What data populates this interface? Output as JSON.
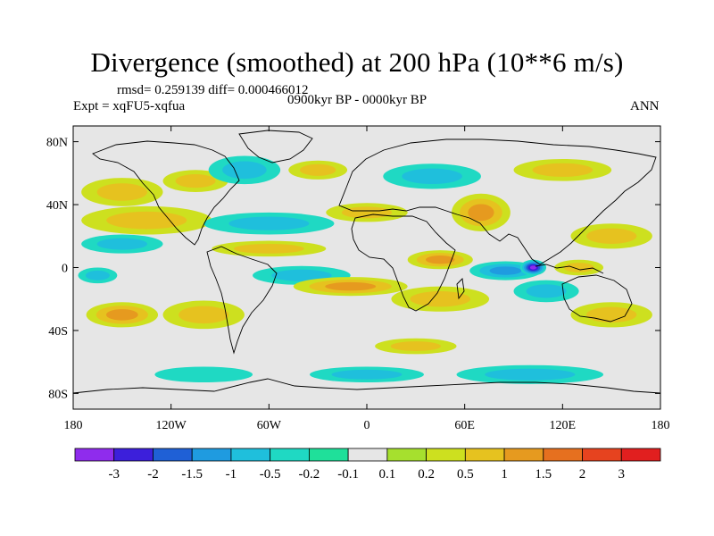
{
  "title": "Divergence (smoothed) at 200 hPa (10**6 m/s)",
  "stats": "rmsd= 0.259139 diff= 0.000466012",
  "experiment": "Expt = xqFU5-xqfua",
  "period": "0900kyr BP - 0000kyr BP",
  "season": "ANN",
  "axes": {
    "y_ticks": [
      {
        "label": "80N",
        "lat": 80
      },
      {
        "label": "40N",
        "lat": 40
      },
      {
        "label": "0",
        "lat": 0
      },
      {
        "label": "40S",
        "lat": -40
      },
      {
        "label": "80S",
        "lat": -80
      }
    ],
    "x_ticks": [
      {
        "label": "180",
        "lon": -180
      },
      {
        "label": "120W",
        "lon": -120
      },
      {
        "label": "60W",
        "lon": -60
      },
      {
        "label": "0",
        "lon": 0
      },
      {
        "label": "60E",
        "lon": 60
      },
      {
        "label": "120E",
        "lon": 120
      },
      {
        "label": "180",
        "lon": 180
      }
    ],
    "lon_range": [
      -180,
      180
    ],
    "lat_range": [
      -90,
      90
    ]
  },
  "colorbar": {
    "colors": [
      "#8f2ced",
      "#3c1fdb",
      "#1f60d6",
      "#1f9be0",
      "#1fbfdc",
      "#1fd9c3",
      "#1fe09a",
      "#e6e6e6",
      "#a6e02e",
      "#cde01f",
      "#e6c21f",
      "#e69a1f",
      "#e6701f",
      "#e6431f",
      "#e11f1f"
    ],
    "labels": [
      "-3",
      "-2",
      "-1.5",
      "-1",
      "-0.5",
      "-0.2",
      "-0.1",
      "0.1",
      "0.2",
      "0.5",
      "1",
      "1.5",
      "2",
      "3"
    ]
  },
  "field_blobs": [
    {
      "lon": -105,
      "lat": 55,
      "rlon": 20,
      "rlat": 7,
      "level": 0.5
    },
    {
      "lon": -75,
      "lat": 62,
      "rlon": 22,
      "rlat": 9,
      "level": -0.5
    },
    {
      "lon": -30,
      "lat": 62,
      "rlon": 18,
      "rlat": 6,
      "level": 0.5
    },
    {
      "lon": 40,
      "lat": 58,
      "rlon": 30,
      "rlat": 8,
      "level": -0.5
    },
    {
      "lon": 120,
      "lat": 62,
      "rlon": 30,
      "rlat": 7,
      "level": 0.5
    },
    {
      "lon": -150,
      "lat": 48,
      "rlon": 25,
      "rlat": 9,
      "level": 0.5
    },
    {
      "lon": -135,
      "lat": 30,
      "rlon": 40,
      "rlat": 9,
      "level": 0.5
    },
    {
      "lon": -150,
      "lat": 15,
      "rlon": 25,
      "rlat": 6,
      "level": -0.5
    },
    {
      "lon": -60,
      "lat": 28,
      "rlon": 40,
      "rlat": 7,
      "level": -0.5
    },
    {
      "lon": -60,
      "lat": 12,
      "rlon": 35,
      "rlat": 5,
      "level": 0.5
    },
    {
      "lon": 0,
      "lat": 35,
      "rlon": 25,
      "rlat": 6,
      "level": 0.5
    },
    {
      "lon": 70,
      "lat": 35,
      "rlon": 18,
      "rlat": 12,
      "level": 1
    },
    {
      "lon": 45,
      "lat": 5,
      "rlon": 20,
      "rlat": 6,
      "level": 1
    },
    {
      "lon": 85,
      "lat": -2,
      "rlon": 22,
      "rlat": 6,
      "level": -1
    },
    {
      "lon": 102,
      "lat": 0,
      "rlon": 8,
      "rlat": 5,
      "level": -3
    },
    {
      "lon": 150,
      "lat": 20,
      "rlon": 25,
      "rlat": 8,
      "level": 0.5
    },
    {
      "lon": 130,
      "lat": 0,
      "rlon": 15,
      "rlat": 5,
      "level": 0.5
    },
    {
      "lon": -40,
      "lat": -5,
      "rlon": 30,
      "rlat": 6,
      "level": -0.5
    },
    {
      "lon": -10,
      "lat": -12,
      "rlon": 35,
      "rlat": 6,
      "level": 1
    },
    {
      "lon": 45,
      "lat": -20,
      "rlon": 30,
      "rlat": 8,
      "level": 0.5
    },
    {
      "lon": 110,
      "lat": -15,
      "rlon": 20,
      "rlat": 7,
      "level": -0.5
    },
    {
      "lon": 150,
      "lat": -30,
      "rlon": 25,
      "rlat": 8,
      "level": 0.5
    },
    {
      "lon": -150,
      "lat": -30,
      "rlon": 22,
      "rlat": 8,
      "level": 1
    },
    {
      "lon": -100,
      "lat": -30,
      "rlon": 25,
      "rlat": 9,
      "level": 0.5
    },
    {
      "lon": -165,
      "lat": -5,
      "rlon": 12,
      "rlat": 5,
      "level": -0.5
    },
    {
      "lon": 30,
      "lat": -50,
      "rlon": 25,
      "rlat": 5,
      "level": 0.5
    },
    {
      "lon": 0,
      "lat": -68,
      "rlon": 35,
      "rlat": 5,
      "level": -0.5
    },
    {
      "lon": 100,
      "lat": -68,
      "rlon": 45,
      "rlat": 6,
      "level": -0.5
    },
    {
      "lon": -100,
      "lat": -68,
      "rlon": 30,
      "rlat": 5,
      "level": -0.2
    }
  ]
}
